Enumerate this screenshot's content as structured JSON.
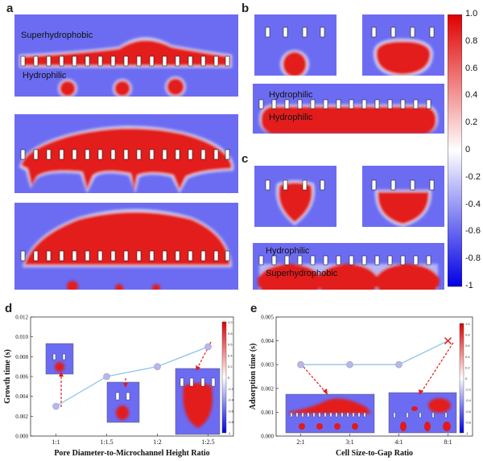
{
  "panel_labels": {
    "a": "a",
    "b": "b",
    "c": "c",
    "d": "d",
    "e": "e"
  },
  "panel_a": {
    "label_top": "Superhydrophobic",
    "label_bottom": "Hydrophilic"
  },
  "panel_b": {
    "label_top": "Hydrophilic",
    "label_bottom": "Hydrophilic"
  },
  "panel_c": {
    "label_top": "Hydrophilic",
    "label_bottom": "Superhydrophobic"
  },
  "colorbar": {
    "ticks": [
      "1.0",
      "0.8",
      "0.6",
      "0.4",
      "0.2",
      "0",
      "-0.2",
      "-0.4",
      "-0.6",
      "-0.8",
      "-1"
    ],
    "colors": {
      "high": "#e00000",
      "mid": "#ffffff",
      "low": "#0000e6",
      "field": "#6c6cf2",
      "body": "#e31a1a"
    }
  },
  "chart_data": [
    {
      "type": "line",
      "ylabel": "Growth time (s)",
      "xlabel": "Pore Diameter-to-Microchannel Height Ratio",
      "categories": [
        "1:1",
        "1:1.5",
        "1:2",
        "1:2.5"
      ],
      "values": [
        0.003,
        0.006,
        0.007,
        0.009
      ],
      "ylim": [
        0,
        0.012
      ],
      "yticks": [
        "0.000",
        "0.002",
        "0.004",
        "0.006",
        "0.008",
        "0.010",
        "0.012"
      ],
      "inset_colorbar_ticks": [
        "1.0",
        "0.8",
        "0.6",
        "0.4",
        "0.2",
        "0",
        "-0.2",
        "-0.4",
        "-0.6",
        "-0.8",
        "-1"
      ],
      "line_color": "#8ec5e8",
      "marker_color": "#b8b8e6"
    },
    {
      "type": "line",
      "ylabel": "Adsorption time (s)",
      "xlabel": "Cell Size-to-Gap Ratio",
      "categories": [
        "2:1",
        "3:1",
        "4:1",
        "8:1"
      ],
      "values": [
        0.003,
        0.003,
        0.003,
        0.004
      ],
      "ylim": [
        0,
        0.005
      ],
      "yticks": [
        "0.000",
        "0.001",
        "0.002",
        "0.003",
        "0.004",
        "0.005"
      ],
      "inset_colorbar_ticks": [
        "1.0",
        "0.8",
        "0.6",
        "0.4",
        "0.2",
        "0",
        "-0.2",
        "-0.4",
        "-0.6",
        "-0.8",
        "-1"
      ],
      "line_color": "#8ec5e8",
      "marker_color": "#b8b8e6"
    }
  ]
}
